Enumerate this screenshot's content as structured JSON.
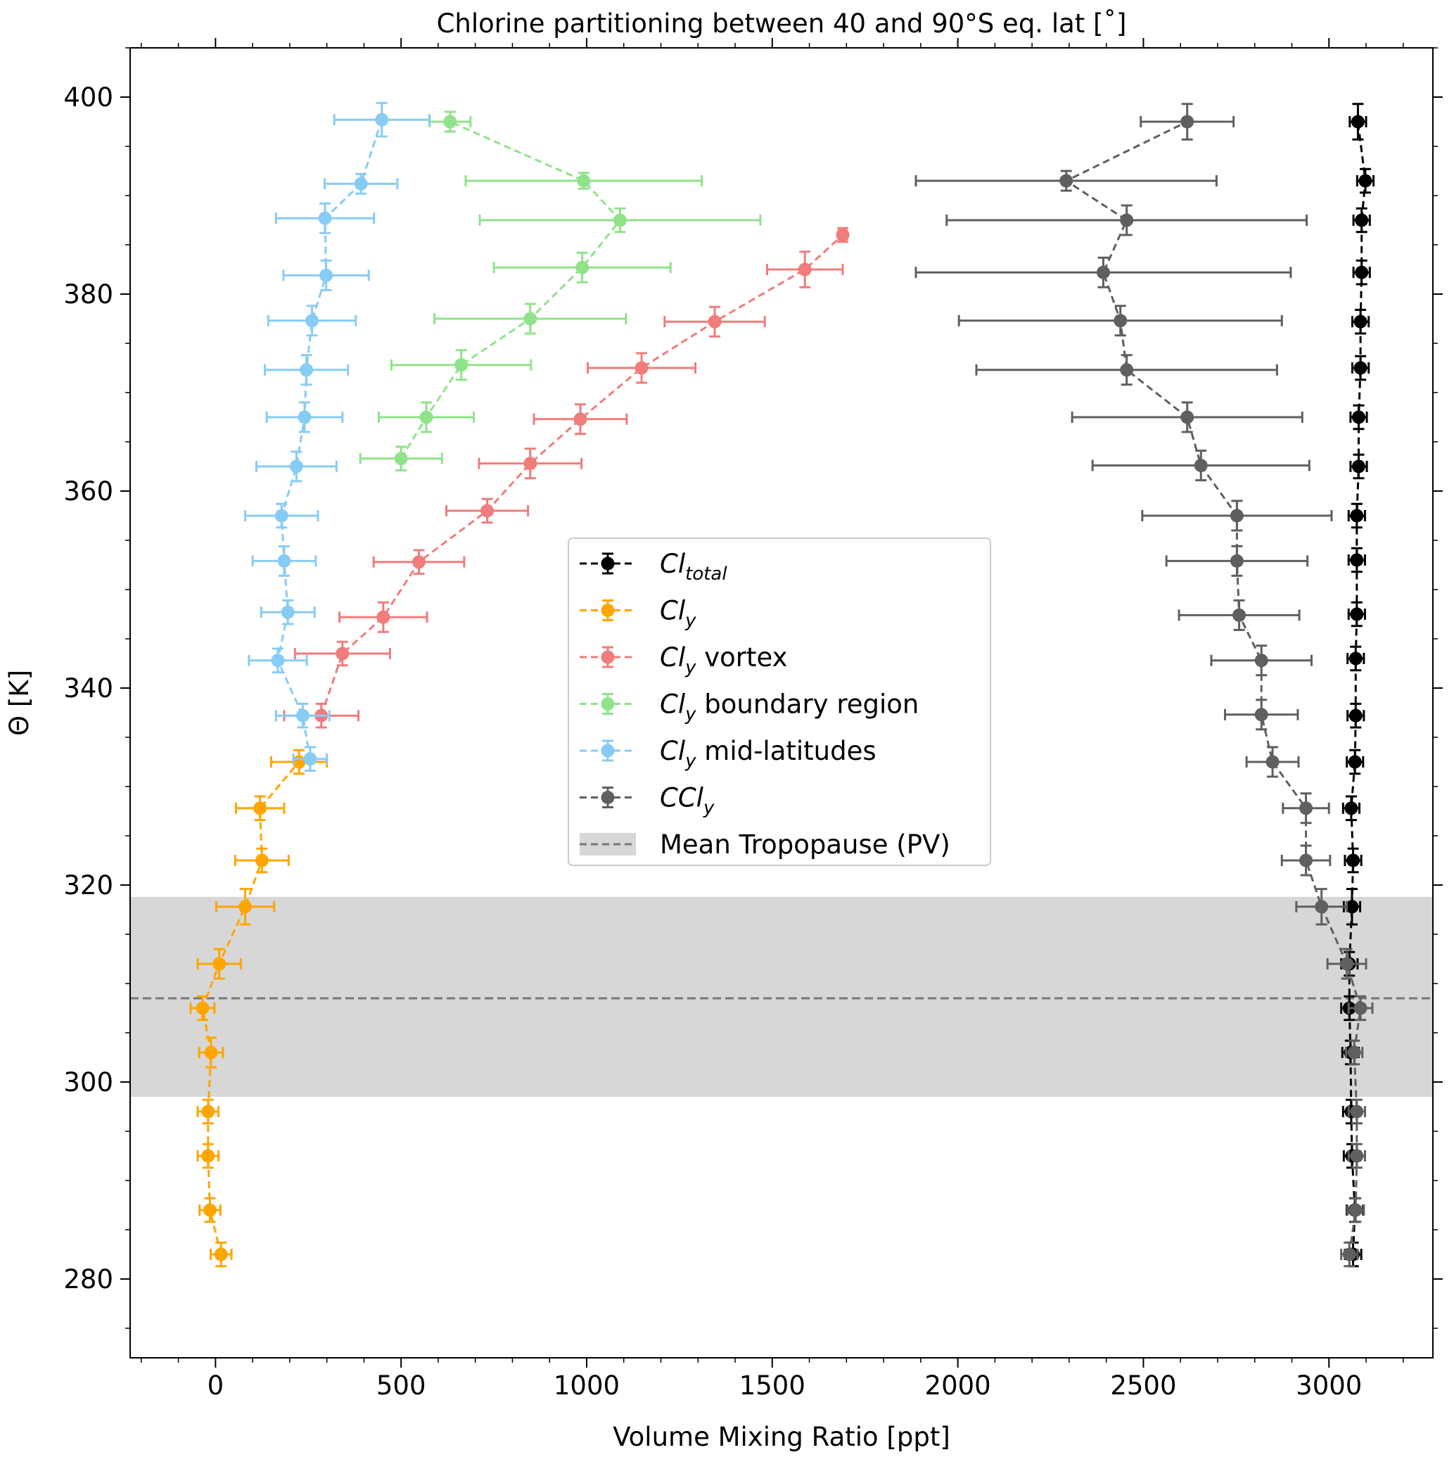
{
  "chart_data": {
    "type": "line",
    "title": "Chlorine partitioning between 40 and 90°S eq. lat [˚]",
    "xlabel": "Volume Mixing Ratio [ppt]",
    "ylabel": "Θ [K]",
    "xlim": [
      -230,
      3280
    ],
    "ylim": [
      272,
      405
    ],
    "xticks": [
      0,
      500,
      1000,
      1500,
      2000,
      2500,
      3000
    ],
    "yticks": [
      280,
      300,
      320,
      340,
      360,
      380,
      400
    ],
    "xtick_labels": [
      "0",
      "500",
      "1000",
      "1500",
      "2000",
      "2500",
      "3000"
    ],
    "ytick_labels": [
      "280",
      "300",
      "320",
      "340",
      "360",
      "380",
      "400"
    ],
    "legend_position": "center",
    "tropopause": {
      "label": "Mean Tropopause (PV)",
      "mean": 308.5,
      "range": [
        298.5,
        318.8
      ],
      "color": "#777777",
      "band_color": "#d7d7d7"
    },
    "series": [
      {
        "name": "Cl",
        "sub": "total",
        "suffix": "",
        "color": "#000000",
        "points": [
          {
            "x": 3065,
            "y": 282.5,
            "xerr": 22,
            "yerr": 1.2
          },
          {
            "x": 3070,
            "y": 287.0,
            "xerr": 22,
            "yerr": 1.2
          },
          {
            "x": 3062,
            "y": 292.5,
            "xerr": 22,
            "yerr": 1.2
          },
          {
            "x": 3060,
            "y": 297.0,
            "xerr": 22,
            "yerr": 1.2
          },
          {
            "x": 3058,
            "y": 303.0,
            "xerr": 22,
            "yerr": 1.2
          },
          {
            "x": 3055,
            "y": 307.5,
            "xerr": 22,
            "yerr": 1.2
          },
          {
            "x": 3055,
            "y": 312.0,
            "xerr": 22,
            "yerr": 1.2
          },
          {
            "x": 3062,
            "y": 317.8,
            "xerr": 22,
            "yerr": 1.8
          },
          {
            "x": 3065,
            "y": 322.5,
            "xerr": 22,
            "yerr": 1.2
          },
          {
            "x": 3060,
            "y": 327.8,
            "xerr": 22,
            "yerr": 1.2
          },
          {
            "x": 3070,
            "y": 332.5,
            "xerr": 22,
            "yerr": 1.2
          },
          {
            "x": 3072,
            "y": 337.2,
            "xerr": 22,
            "yerr": 1.2
          },
          {
            "x": 3072,
            "y": 343.0,
            "xerr": 22,
            "yerr": 1.2
          },
          {
            "x": 3075,
            "y": 347.5,
            "xerr": 22,
            "yerr": 1.2
          },
          {
            "x": 3075,
            "y": 353.0,
            "xerr": 22,
            "yerr": 1.2
          },
          {
            "x": 3075,
            "y": 357.5,
            "xerr": 22,
            "yerr": 1.2
          },
          {
            "x": 3080,
            "y": 362.5,
            "xerr": 22,
            "yerr": 1.2
          },
          {
            "x": 3080,
            "y": 367.5,
            "xerr": 22,
            "yerr": 1.2
          },
          {
            "x": 3085,
            "y": 372.5,
            "xerr": 22,
            "yerr": 1.2
          },
          {
            "x": 3085,
            "y": 377.2,
            "xerr": 22,
            "yerr": 1.2
          },
          {
            "x": 3088,
            "y": 382.2,
            "xerr": 22,
            "yerr": 1.2
          },
          {
            "x": 3088,
            "y": 387.5,
            "xerr": 22,
            "yerr": 1.2
          },
          {
            "x": 3098,
            "y": 391.5,
            "xerr": 22,
            "yerr": 1.2
          },
          {
            "x": 3078,
            "y": 397.5,
            "xerr": 22,
            "yerr": 1.8
          }
        ]
      },
      {
        "name": "Cl",
        "sub": "y",
        "suffix": "",
        "color": "#ffa500",
        "points": [
          {
            "x": 15,
            "y": 282.5,
            "xerr": 28,
            "yerr": 1.2
          },
          {
            "x": -15,
            "y": 287.0,
            "xerr": 28,
            "yerr": 1.2
          },
          {
            "x": -20,
            "y": 292.5,
            "xerr": 28,
            "yerr": 1.2
          },
          {
            "x": -20,
            "y": 297.0,
            "xerr": 28,
            "yerr": 1.2
          },
          {
            "x": -12,
            "y": 303.0,
            "xerr": 32,
            "yerr": 1.5
          },
          {
            "x": -35,
            "y": 307.5,
            "xerr": 32,
            "yerr": 1.2
          },
          {
            "x": 10,
            "y": 312.0,
            "xerr": 58,
            "yerr": 1.5
          },
          {
            "x": 80,
            "y": 317.8,
            "xerr": 78,
            "yerr": 1.8
          },
          {
            "x": 125,
            "y": 322.5,
            "xerr": 72,
            "yerr": 1.2
          },
          {
            "x": 120,
            "y": 327.8,
            "xerr": 65,
            "yerr": 1.2
          },
          {
            "x": 225,
            "y": 332.5,
            "xerr": 75,
            "yerr": 1.2
          }
        ]
      },
      {
        "name": "Cl",
        "sub": "y",
        "suffix": " vortex",
        "color": "#f07c7c",
        "points": [
          {
            "x": 285,
            "y": 337.2,
            "xerr": 100,
            "yerr": 1.2
          },
          {
            "x": 342,
            "y": 343.5,
            "xerr": 128,
            "yerr": 1.2
          },
          {
            "x": 452,
            "y": 347.2,
            "xerr": 118,
            "yerr": 1.5
          },
          {
            "x": 548,
            "y": 352.8,
            "xerr": 122,
            "yerr": 1.2
          },
          {
            "x": 732,
            "y": 358.0,
            "xerr": 110,
            "yerr": 1.2
          },
          {
            "x": 848,
            "y": 362.8,
            "xerr": 138,
            "yerr": 1.5
          },
          {
            "x": 983,
            "y": 367.3,
            "xerr": 125,
            "yerr": 1.5
          },
          {
            "x": 1148,
            "y": 372.5,
            "xerr": 145,
            "yerr": 1.5
          },
          {
            "x": 1345,
            "y": 377.2,
            "xerr": 135,
            "yerr": 1.5
          },
          {
            "x": 1588,
            "y": 382.5,
            "xerr": 102,
            "yerr": 1.8
          },
          {
            "x": 1690,
            "y": 386.0,
            "xerr": 10,
            "yerr": 0.7
          }
        ]
      },
      {
        "name": "Cl",
        "sub": "y",
        "suffix": " boundary region",
        "color": "#90e38a",
        "points": [
          {
            "x": 500,
            "y": 363.3,
            "xerr": 110,
            "yerr": 1.2
          },
          {
            "x": 568,
            "y": 367.5,
            "xerr": 128,
            "yerr": 1.5
          },
          {
            "x": 662,
            "y": 372.8,
            "xerr": 188,
            "yerr": 1.5
          },
          {
            "x": 848,
            "y": 377.5,
            "xerr": 258,
            "yerr": 1.5
          },
          {
            "x": 988,
            "y": 382.7,
            "xerr": 238,
            "yerr": 1.5
          },
          {
            "x": 1090,
            "y": 387.5,
            "xerr": 378,
            "yerr": 1.2
          },
          {
            "x": 992,
            "y": 391.5,
            "xerr": 318,
            "yerr": 0.8
          },
          {
            "x": 632,
            "y": 397.5,
            "xerr": 55,
            "yerr": 1.0
          }
        ]
      },
      {
        "name": "Cl",
        "sub": "y",
        "suffix": " mid-latitudes",
        "color": "#87ccf5",
        "points": [
          {
            "x": 255,
            "y": 332.8,
            "xerr": 45,
            "yerr": 1.2
          },
          {
            "x": 235,
            "y": 337.2,
            "xerr": 72,
            "yerr": 1.2
          },
          {
            "x": 168,
            "y": 342.8,
            "xerr": 78,
            "yerr": 1.2
          },
          {
            "x": 195,
            "y": 347.7,
            "xerr": 72,
            "yerr": 1.2
          },
          {
            "x": 185,
            "y": 352.9,
            "xerr": 85,
            "yerr": 1.5
          },
          {
            "x": 178,
            "y": 357.5,
            "xerr": 98,
            "yerr": 1.2
          },
          {
            "x": 218,
            "y": 362.5,
            "xerr": 108,
            "yerr": 1.5
          },
          {
            "x": 240,
            "y": 367.5,
            "xerr": 102,
            "yerr": 1.5
          },
          {
            "x": 245,
            "y": 372.3,
            "xerr": 112,
            "yerr": 1.5
          },
          {
            "x": 260,
            "y": 377.3,
            "xerr": 118,
            "yerr": 1.5
          },
          {
            "x": 298,
            "y": 381.9,
            "xerr": 115,
            "yerr": 1.5
          },
          {
            "x": 295,
            "y": 387.7,
            "xerr": 132,
            "yerr": 1.5
          },
          {
            "x": 392,
            "y": 391.2,
            "xerr": 98,
            "yerr": 1.0
          },
          {
            "x": 448,
            "y": 397.7,
            "xerr": 128,
            "yerr": 1.7
          }
        ]
      },
      {
        "name": "CCl",
        "sub": "y",
        "suffix": "",
        "color": "#5f5f5f",
        "points": [
          {
            "x": 3055,
            "y": 282.5,
            "xerr": 22,
            "yerr": 1.2
          },
          {
            "x": 3072,
            "y": 287.0,
            "xerr": 22,
            "yerr": 1.2
          },
          {
            "x": 3075,
            "y": 292.5,
            "xerr": 22,
            "yerr": 1.2
          },
          {
            "x": 3075,
            "y": 297.0,
            "xerr": 22,
            "yerr": 1.2
          },
          {
            "x": 3068,
            "y": 303.0,
            "xerr": 22,
            "yerr": 1.2
          },
          {
            "x": 3085,
            "y": 307.5,
            "xerr": 32,
            "yerr": 1.2
          },
          {
            "x": 3048,
            "y": 312.0,
            "xerr": 52,
            "yerr": 1.5
          },
          {
            "x": 2980,
            "y": 317.8,
            "xerr": 68,
            "yerr": 1.8
          },
          {
            "x": 2938,
            "y": 322.5,
            "xerr": 65,
            "yerr": 1.5
          },
          {
            "x": 2938,
            "y": 327.8,
            "xerr": 62,
            "yerr": 1.5
          },
          {
            "x": 2848,
            "y": 332.5,
            "xerr": 70,
            "yerr": 1.5
          },
          {
            "x": 2818,
            "y": 337.3,
            "xerr": 98,
            "yerr": 1.5
          },
          {
            "x": 2818,
            "y": 342.8,
            "xerr": 135,
            "yerr": 1.5
          },
          {
            "x": 2758,
            "y": 347.4,
            "xerr": 162,
            "yerr": 1.5
          },
          {
            "x": 2752,
            "y": 352.9,
            "xerr": 190,
            "yerr": 1.5
          },
          {
            "x": 2752,
            "y": 357.5,
            "xerr": 255,
            "yerr": 1.5
          },
          {
            "x": 2655,
            "y": 362.6,
            "xerr": 292,
            "yerr": 1.5
          },
          {
            "x": 2618,
            "y": 367.5,
            "xerr": 310,
            "yerr": 1.5
          },
          {
            "x": 2455,
            "y": 372.3,
            "xerr": 405,
            "yerr": 1.5
          },
          {
            "x": 2438,
            "y": 377.3,
            "xerr": 435,
            "yerr": 1.5
          },
          {
            "x": 2392,
            "y": 382.2,
            "xerr": 505,
            "yerr": 1.5
          },
          {
            "x": 2455,
            "y": 387.5,
            "xerr": 485,
            "yerr": 1.5
          },
          {
            "x": 2292,
            "y": 391.5,
            "xerr": 405,
            "yerr": 1.0
          },
          {
            "x": 2618,
            "y": 397.5,
            "xerr": 125,
            "yerr": 1.8
          }
        ]
      }
    ]
  }
}
